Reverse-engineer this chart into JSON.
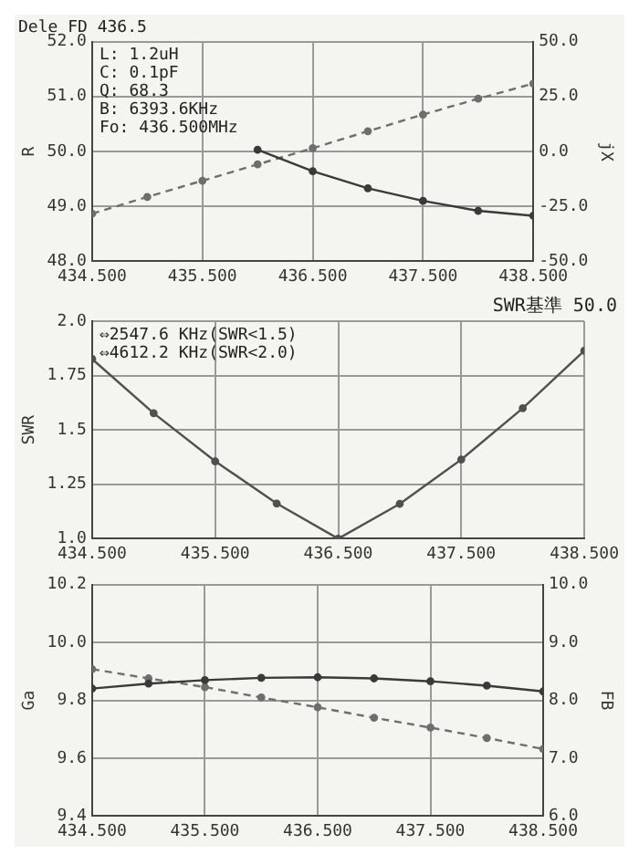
{
  "chart_data": [
    {
      "type": "line",
      "title": "Dele FD 436.5",
      "ylabel": "R",
      "y2label": "jX",
      "x": [
        434.5,
        435.0,
        435.5,
        436.0,
        436.5,
        437.0,
        437.5,
        438.0,
        438.5
      ],
      "xlim": [
        434.5,
        438.5
      ],
      "xticks": [
        {
          "value": 434.5,
          "label": "434.500"
        },
        {
          "value": 435.5,
          "label": "435.500"
        },
        {
          "value": 436.5,
          "label": "436.500"
        },
        {
          "value": 437.5,
          "label": "437.500"
        },
        {
          "value": 438.5,
          "label": "438.500"
        }
      ],
      "ylim": [
        48,
        52
      ],
      "yticks": [
        {
          "value": 48,
          "label": "48.0"
        },
        {
          "value": 49,
          "label": "49.0"
        },
        {
          "value": 50,
          "label": "50.0"
        },
        {
          "value": 51,
          "label": "51.0"
        },
        {
          "value": 52,
          "label": "52.0"
        }
      ],
      "y2lim": [
        -50,
        50
      ],
      "y2ticks": [
        {
          "value": -50,
          "label": "-50.0"
        },
        {
          "value": -25,
          "label": "-25.0"
        },
        {
          "value": 0,
          "label": "0.0"
        },
        {
          "value": 25,
          "label": "25.0"
        },
        {
          "value": 50,
          "label": "50.0"
        }
      ],
      "grid": true,
      "marker": "circle",
      "series": [
        {
          "color": "#3a3a3a",
          "line_style": "solid",
          "values": [
            null,
            null,
            null,
            50.03,
            49.64,
            49.33,
            49.1,
            48.92,
            48.83
          ]
        },
        {
          "color": "#6e6e6e",
          "line_style": "dashed",
          "axis": "y2",
          "values": [
            -28.3,
            -20.7,
            -13.3,
            -5.9,
            1.5,
            9.2,
            16.8,
            24,
            30.9
          ]
        }
      ],
      "annotations": [
        "L: 1.2uH",
        "C: 0.1pF",
        "Q: 68.3",
        "B: 6393.6KHz",
        "Fo: 436.500MHz"
      ]
    },
    {
      "type": "line",
      "subtitle": "SWR基準 50.0",
      "ylabel": "SWR",
      "x": [
        434.5,
        435.0,
        435.5,
        436.0,
        436.5,
        437.0,
        437.5,
        438.0,
        438.5
      ],
      "xlim": [
        434.5,
        438.5
      ],
      "xticks": [
        {
          "value": 434.5,
          "label": "434.500"
        },
        {
          "value": 435.5,
          "label": "435.500"
        },
        {
          "value": 436.5,
          "label": "436.500"
        },
        {
          "value": 437.5,
          "label": "437.500"
        },
        {
          "value": 438.5,
          "label": "438.500"
        }
      ],
      "ylim": [
        1.0,
        2.0
      ],
      "yticks": [
        {
          "value": 1,
          "label": "1.0"
        },
        1.25,
        1.5,
        1.75,
        {
          "value": 2,
          "label": "2.0"
        }
      ],
      "grid": true,
      "marker": "circle",
      "series": [
        {
          "color": "#505050",
          "line_style": "solid",
          "values": [
            1.826,
            1.577,
            1.356,
            1.162,
            1.0,
            1.16,
            1.364,
            1.6,
            1.864
          ]
        }
      ],
      "annotations": [
        "⇔2547.6 KHz(SWR<1.5)",
        "⇔4612.2 KHz(SWR<2.0)"
      ]
    },
    {
      "type": "line",
      "ylabel": "Ga",
      "y2label": "FB",
      "x": [
        434.5,
        435.0,
        435.5,
        436.0,
        436.5,
        437.0,
        437.5,
        438.0,
        438.5
      ],
      "xlim": [
        434.5,
        438.5
      ],
      "xticks": [
        {
          "value": 434.5,
          "label": "434.500"
        },
        {
          "value": 435.5,
          "label": "435.500"
        },
        {
          "value": 436.5,
          "label": "436.500"
        },
        {
          "value": 437.5,
          "label": "437.500"
        },
        {
          "value": 438.5,
          "label": "438.500"
        }
      ],
      "ylim": [
        9.4,
        10.2
      ],
      "yticks": [
        9.4,
        9.6,
        9.8,
        {
          "value": 10,
          "label": "10.0"
        },
        10.2
      ],
      "y2lim": [
        6,
        10
      ],
      "y2ticks": [
        {
          "value": 6,
          "label": "6.0"
        },
        {
          "value": 7,
          "label": "7.0"
        },
        {
          "value": 8,
          "label": "8.0"
        },
        {
          "value": 9,
          "label": "9.0"
        },
        {
          "value": 10,
          "label": "10.0"
        }
      ],
      "grid": true,
      "marker": "circle",
      "series": [
        {
          "color": "#3a3a3a",
          "line_style": "solid",
          "values": [
            9.841,
            9.858,
            9.87,
            9.878,
            9.88,
            9.876,
            9.866,
            9.851,
            9.831
          ]
        },
        {
          "color": "#6e6e6e",
          "line_style": "dashed",
          "axis": "y2",
          "values": [
            8.54,
            8.38,
            8.23,
            8.05,
            7.88,
            7.7,
            7.53,
            7.35,
            7.16
          ]
        }
      ]
    }
  ]
}
